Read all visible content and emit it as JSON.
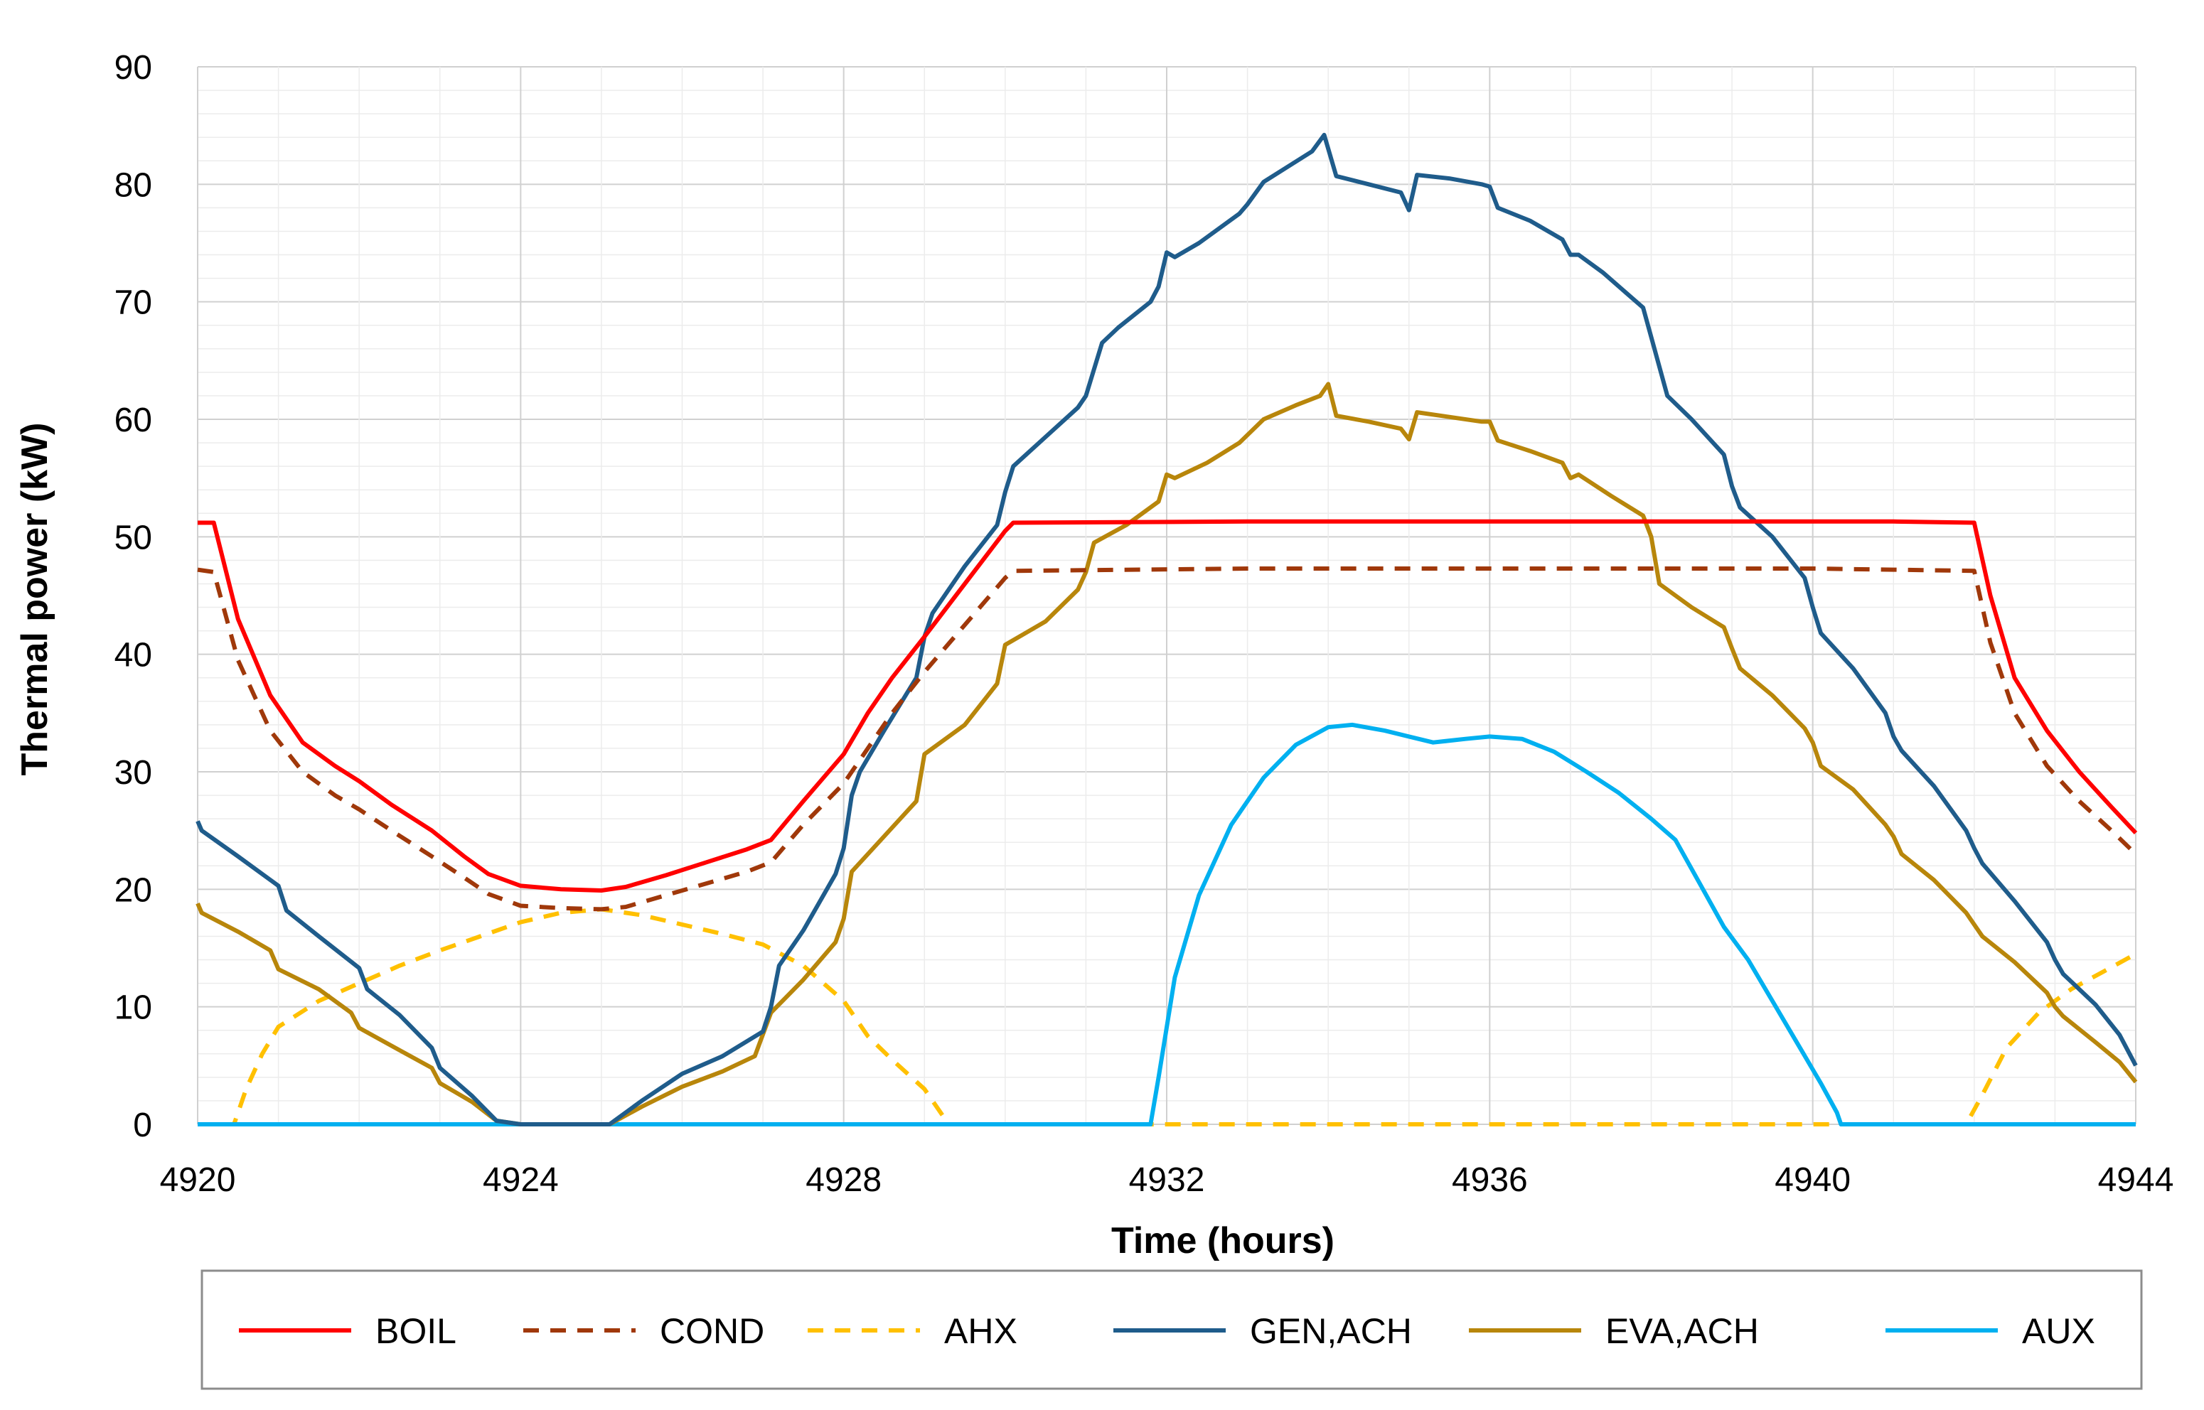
{
  "chart_data": {
    "type": "line",
    "title": "",
    "xlabel": "Time (hours)",
    "ylabel": "Thermal power (kW)",
    "xlim": [
      4920,
      4944
    ],
    "ylim": [
      0,
      90
    ],
    "xticks": [
      4920,
      4924,
      4928,
      4932,
      4936,
      4940,
      4944
    ],
    "yticks": [
      0,
      10,
      20,
      30,
      40,
      50,
      60,
      70,
      80,
      90
    ],
    "grid": true,
    "legend_position": "bottom",
    "series": [
      {
        "name": "BOIL",
        "color": "#FF0000",
        "dash": "solid",
        "points": [
          [
            4920,
            51.2
          ],
          [
            4920.2,
            51.2
          ],
          [
            4920.5,
            43
          ],
          [
            4920.9,
            36.5
          ],
          [
            4921.3,
            32.5
          ],
          [
            4921.7,
            30.5
          ],
          [
            4922,
            29.2
          ],
          [
            4922.4,
            27.2
          ],
          [
            4922.9,
            25
          ],
          [
            4923.3,
            22.8
          ],
          [
            4923.6,
            21.3
          ],
          [
            4924,
            20.3
          ],
          [
            4924.5,
            20
          ],
          [
            4925,
            19.9
          ],
          [
            4925.3,
            20.2
          ],
          [
            4925.8,
            21.2
          ],
          [
            4926.3,
            22.3
          ],
          [
            4926.8,
            23.4
          ],
          [
            4927.1,
            24.2
          ],
          [
            4927.5,
            27.5
          ],
          [
            4928,
            31.5
          ],
          [
            4928.3,
            35
          ],
          [
            4928.6,
            38
          ],
          [
            4929,
            41.5
          ],
          [
            4929.5,
            46
          ],
          [
            4930,
            50.5
          ],
          [
            4930.1,
            51.2
          ],
          [
            4933,
            51.3
          ],
          [
            4940,
            51.3
          ],
          [
            4941,
            51.3
          ],
          [
            4942,
            51.2
          ],
          [
            4942.2,
            45
          ],
          [
            4942.5,
            38
          ],
          [
            4942.9,
            33.5
          ],
          [
            4943.3,
            30
          ],
          [
            4943.7,
            27
          ],
          [
            4944,
            24.8
          ]
        ]
      },
      {
        "name": "COND",
        "color": "#A0380A",
        "dash": "dashed",
        "points": [
          [
            4920,
            47.2
          ],
          [
            4920.2,
            47
          ],
          [
            4920.5,
            39.5
          ],
          [
            4920.9,
            33.5
          ],
          [
            4921.3,
            30
          ],
          [
            4921.7,
            28
          ],
          [
            4922,
            26.8
          ],
          [
            4922.4,
            25
          ],
          [
            4922.9,
            22.8
          ],
          [
            4923.3,
            21
          ],
          [
            4923.6,
            19.6
          ],
          [
            4924,
            18.6
          ],
          [
            4924.5,
            18.4
          ],
          [
            4925,
            18.3
          ],
          [
            4925.3,
            18.5
          ],
          [
            4925.8,
            19.5
          ],
          [
            4926.3,
            20.5
          ],
          [
            4926.8,
            21.5
          ],
          [
            4927.1,
            22.3
          ],
          [
            4927.5,
            25.5
          ],
          [
            4928,
            29
          ],
          [
            4928.3,
            32
          ],
          [
            4928.6,
            35
          ],
          [
            4929,
            38.5
          ],
          [
            4929.5,
            42.5
          ],
          [
            4930,
            46.5
          ],
          [
            4930.1,
            47.1
          ],
          [
            4933,
            47.3
          ],
          [
            4940,
            47.3
          ],
          [
            4941,
            47.2
          ],
          [
            4942,
            47.1
          ],
          [
            4942.2,
            41
          ],
          [
            4942.5,
            35
          ],
          [
            4942.9,
            30.5
          ],
          [
            4943.3,
            27.5
          ],
          [
            4943.7,
            25
          ],
          [
            4944,
            23
          ]
        ]
      },
      {
        "name": "AHX",
        "color": "#FFC000",
        "dash": "dashed",
        "points": [
          [
            4920,
            0
          ],
          [
            4920.45,
            0
          ],
          [
            4920.6,
            3
          ],
          [
            4920.8,
            6
          ],
          [
            4921,
            8.3
          ],
          [
            4921.5,
            10.5
          ],
          [
            4922,
            12
          ],
          [
            4922.5,
            13.5
          ],
          [
            4923,
            14.8
          ],
          [
            4923.5,
            16
          ],
          [
            4924,
            17.2
          ],
          [
            4924.5,
            18
          ],
          [
            4925,
            18.3
          ],
          [
            4925.5,
            17.8
          ],
          [
            4926,
            17
          ],
          [
            4926.5,
            16.2
          ],
          [
            4927,
            15.3
          ],
          [
            4927.5,
            13.5
          ],
          [
            4928,
            10.5
          ],
          [
            4928.3,
            7.5
          ],
          [
            4928.6,
            5.5
          ],
          [
            4929,
            3
          ],
          [
            4929.3,
            0
          ],
          [
            4941.9,
            0
          ],
          [
            4942.1,
            2.5
          ],
          [
            4942.4,
            6.5
          ],
          [
            4942.8,
            9.5
          ],
          [
            4943.2,
            11.5
          ],
          [
            4943.6,
            13
          ],
          [
            4944,
            14.5
          ]
        ]
      },
      {
        "name": "GEN,ACH",
        "color": "#1F5C8B",
        "dash": "solid",
        "points": [
          [
            4920,
            25.8
          ],
          [
            4920.05,
            25
          ],
          [
            4920.5,
            22.8
          ],
          [
            4921,
            20.3
          ],
          [
            4921.1,
            18.2
          ],
          [
            4921.5,
            16
          ],
          [
            4922,
            13.3
          ],
          [
            4922.1,
            11.5
          ],
          [
            4922.5,
            9.3
          ],
          [
            4922.9,
            6.5
          ],
          [
            4923,
            4.8
          ],
          [
            4923.4,
            2.4
          ],
          [
            4923.7,
            0.3
          ],
          [
            4924,
            0
          ],
          [
            4925.1,
            0
          ],
          [
            4925.5,
            2
          ],
          [
            4926,
            4.3
          ],
          [
            4926.5,
            5.8
          ],
          [
            4927,
            7.9
          ],
          [
            4927.1,
            10
          ],
          [
            4927.2,
            13.5
          ],
          [
            4927.5,
            16.5
          ],
          [
            4927.9,
            21.3
          ],
          [
            4928,
            23.5
          ],
          [
            4928.1,
            28
          ],
          [
            4928.2,
            30
          ],
          [
            4928.5,
            33.5
          ],
          [
            4928.9,
            38
          ],
          [
            4929,
            41.5
          ],
          [
            4929.1,
            43.5
          ],
          [
            4929.5,
            47.5
          ],
          [
            4929.9,
            51
          ],
          [
            4930,
            53.8
          ],
          [
            4930.1,
            56
          ],
          [
            4930.5,
            58.5
          ],
          [
            4930.9,
            61
          ],
          [
            4931,
            62
          ],
          [
            4931.2,
            66.5
          ],
          [
            4931.4,
            67.8
          ],
          [
            4931.8,
            70
          ],
          [
            4931.9,
            71.3
          ],
          [
            4932,
            74.2
          ],
          [
            4932.1,
            73.8
          ],
          [
            4932.4,
            75
          ],
          [
            4932.9,
            77.5
          ],
          [
            4933,
            78.3
          ],
          [
            4933.2,
            80.2
          ],
          [
            4933.5,
            81.5
          ],
          [
            4933.8,
            82.8
          ],
          [
            4933.95,
            84.2
          ],
          [
            4934.1,
            80.7
          ],
          [
            4934.5,
            80
          ],
          [
            4934.9,
            79.3
          ],
          [
            4935,
            77.8
          ],
          [
            4935.1,
            80.8
          ],
          [
            4935.5,
            80.5
          ],
          [
            4935.9,
            80
          ],
          [
            4936,
            79.8
          ],
          [
            4936.1,
            78
          ],
          [
            4936.5,
            76.9
          ],
          [
            4936.9,
            75.3
          ],
          [
            4937,
            74
          ],
          [
            4937.1,
            74
          ],
          [
            4937.4,
            72.5
          ],
          [
            4937.9,
            69.5
          ],
          [
            4938,
            67
          ],
          [
            4938.2,
            62
          ],
          [
            4938.5,
            60
          ],
          [
            4938.9,
            57
          ],
          [
            4939,
            54.3
          ],
          [
            4939.1,
            52.5
          ],
          [
            4939.5,
            50
          ],
          [
            4939.9,
            46.5
          ],
          [
            4940,
            44
          ],
          [
            4940.1,
            41.8
          ],
          [
            4940.5,
            38.8
          ],
          [
            4940.9,
            35
          ],
          [
            4941,
            33
          ],
          [
            4941.1,
            31.8
          ],
          [
            4941.5,
            28.8
          ],
          [
            4941.9,
            25
          ],
          [
            4942,
            23.5
          ],
          [
            4942.1,
            22.2
          ],
          [
            4942.5,
            19
          ],
          [
            4942.9,
            15.5
          ],
          [
            4943,
            14
          ],
          [
            4943.1,
            12.8
          ],
          [
            4943.5,
            10.2
          ],
          [
            4943.8,
            7.6
          ],
          [
            4944,
            5
          ]
        ]
      },
      {
        "name": "EVA,ACH",
        "color": "#B8860B",
        "dash": "solid",
        "points": [
          [
            4920,
            18.8
          ],
          [
            4920.05,
            18
          ],
          [
            4920.5,
            16.4
          ],
          [
            4920.9,
            14.8
          ],
          [
            4921,
            13.2
          ],
          [
            4921.5,
            11.5
          ],
          [
            4921.9,
            9.5
          ],
          [
            4922,
            8.2
          ],
          [
            4922.5,
            6.3
          ],
          [
            4922.9,
            4.8
          ],
          [
            4923,
            3.5
          ],
          [
            4923.4,
            1.9
          ],
          [
            4923.7,
            0.3
          ],
          [
            4924,
            0
          ],
          [
            4925.1,
            0
          ],
          [
            4925.5,
            1.5
          ],
          [
            4926,
            3.2
          ],
          [
            4926.5,
            4.5
          ],
          [
            4926.9,
            5.8
          ],
          [
            4927.1,
            9.5
          ],
          [
            4927.5,
            12.3
          ],
          [
            4927.9,
            15.5
          ],
          [
            4928,
            17.5
          ],
          [
            4928.1,
            21.5
          ],
          [
            4928.5,
            24.5
          ],
          [
            4928.9,
            27.5
          ],
          [
            4929,
            31.5
          ],
          [
            4929.5,
            34
          ],
          [
            4929.9,
            37.5
          ],
          [
            4930,
            40.8
          ],
          [
            4930.5,
            42.8
          ],
          [
            4930.9,
            45.5
          ],
          [
            4931,
            47
          ],
          [
            4931.1,
            49.5
          ],
          [
            4931.5,
            51
          ],
          [
            4931.9,
            53
          ],
          [
            4932,
            55.3
          ],
          [
            4932.1,
            55
          ],
          [
            4932.5,
            56.3
          ],
          [
            4932.9,
            58
          ],
          [
            4933.2,
            60
          ],
          [
            4933.6,
            61.2
          ],
          [
            4933.9,
            62
          ],
          [
            4934,
            63
          ],
          [
            4934.1,
            60.3
          ],
          [
            4934.5,
            59.8
          ],
          [
            4934.9,
            59.2
          ],
          [
            4935,
            58.3
          ],
          [
            4935.1,
            60.6
          ],
          [
            4935.5,
            60.2
          ],
          [
            4935.9,
            59.8
          ],
          [
            4936,
            59.8
          ],
          [
            4936.1,
            58.2
          ],
          [
            4936.5,
            57.3
          ],
          [
            4936.9,
            56.3
          ],
          [
            4937,
            55
          ],
          [
            4937.1,
            55.3
          ],
          [
            4937.5,
            53.5
          ],
          [
            4937.9,
            51.8
          ],
          [
            4938,
            50
          ],
          [
            4938.1,
            46
          ],
          [
            4938.5,
            44
          ],
          [
            4938.9,
            42.3
          ],
          [
            4939,
            40.5
          ],
          [
            4939.1,
            38.8
          ],
          [
            4939.5,
            36.5
          ],
          [
            4939.9,
            33.7
          ],
          [
            4940,
            32.5
          ],
          [
            4940.1,
            30.5
          ],
          [
            4940.5,
            28.5
          ],
          [
            4940.9,
            25.5
          ],
          [
            4941,
            24.5
          ],
          [
            4941.1,
            23
          ],
          [
            4941.5,
            20.8
          ],
          [
            4941.9,
            18
          ],
          [
            4942,
            17
          ],
          [
            4942.1,
            16
          ],
          [
            4942.5,
            13.8
          ],
          [
            4942.9,
            11.2
          ],
          [
            4943,
            10
          ],
          [
            4943.1,
            9.2
          ],
          [
            4943.5,
            7
          ],
          [
            4943.8,
            5.3
          ],
          [
            4944,
            3.6
          ]
        ]
      },
      {
        "name": "AUX",
        "color": "#00B0F0",
        "dash": "solid",
        "points": [
          [
            4920,
            0
          ],
          [
            4931.8,
            0
          ],
          [
            4931.9,
            4
          ],
          [
            4932.1,
            12.5
          ],
          [
            4932.4,
            19.5
          ],
          [
            4932.8,
            25.5
          ],
          [
            4933.2,
            29.5
          ],
          [
            4933.6,
            32.3
          ],
          [
            4934,
            33.8
          ],
          [
            4934.3,
            34
          ],
          [
            4934.7,
            33.5
          ],
          [
            4935,
            33
          ],
          [
            4935.3,
            32.5
          ],
          [
            4935.7,
            32.8
          ],
          [
            4936,
            33
          ],
          [
            4936.4,
            32.8
          ],
          [
            4936.8,
            31.7
          ],
          [
            4937.2,
            30
          ],
          [
            4937.6,
            28.2
          ],
          [
            4938,
            26
          ],
          [
            4938.3,
            24.2
          ],
          [
            4938.6,
            20.5
          ],
          [
            4938.9,
            16.8
          ],
          [
            4939.2,
            14
          ],
          [
            4939.5,
            10.5
          ],
          [
            4939.8,
            7
          ],
          [
            4940.1,
            3.5
          ],
          [
            4940.3,
            1
          ],
          [
            4940.35,
            0
          ],
          [
            4944,
            0
          ]
        ]
      }
    ]
  }
}
